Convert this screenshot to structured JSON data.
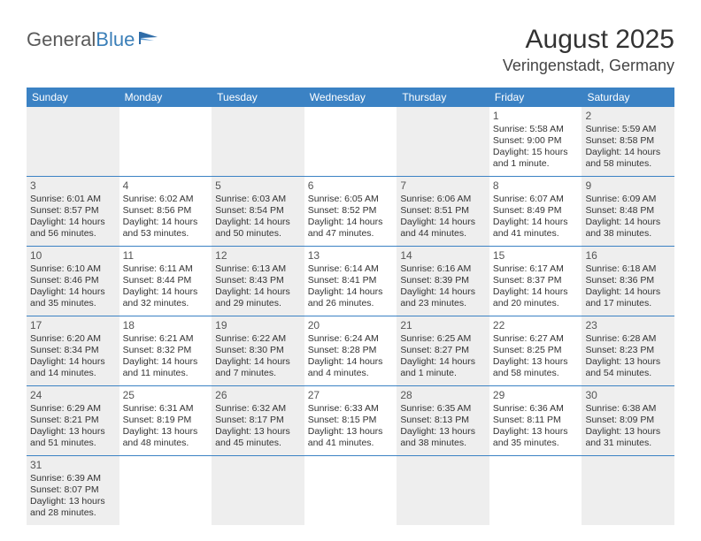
{
  "logo": {
    "text1": "General",
    "text2": "Blue"
  },
  "title": "August 2025",
  "location": "Veringenstadt, Germany",
  "colors": {
    "header_bg": "#3b82c4",
    "header_text": "#ffffff",
    "shaded_bg": "#eeeeee",
    "body_text": "#333333",
    "rule": "#3b82c4"
  },
  "day_names": [
    "Sunday",
    "Monday",
    "Tuesday",
    "Wednesday",
    "Thursday",
    "Friday",
    "Saturday"
  ],
  "weeks": [
    [
      null,
      null,
      null,
      null,
      null,
      {
        "n": "1",
        "sr": "Sunrise: 5:58 AM",
        "ss": "Sunset: 9:00 PM",
        "d1": "Daylight: 15 hours",
        "d2": "and 1 minute."
      },
      {
        "n": "2",
        "sr": "Sunrise: 5:59 AM",
        "ss": "Sunset: 8:58 PM",
        "d1": "Daylight: 14 hours",
        "d2": "and 58 minutes."
      }
    ],
    [
      {
        "n": "3",
        "sr": "Sunrise: 6:01 AM",
        "ss": "Sunset: 8:57 PM",
        "d1": "Daylight: 14 hours",
        "d2": "and 56 minutes."
      },
      {
        "n": "4",
        "sr": "Sunrise: 6:02 AM",
        "ss": "Sunset: 8:56 PM",
        "d1": "Daylight: 14 hours",
        "d2": "and 53 minutes."
      },
      {
        "n": "5",
        "sr": "Sunrise: 6:03 AM",
        "ss": "Sunset: 8:54 PM",
        "d1": "Daylight: 14 hours",
        "d2": "and 50 minutes."
      },
      {
        "n": "6",
        "sr": "Sunrise: 6:05 AM",
        "ss": "Sunset: 8:52 PM",
        "d1": "Daylight: 14 hours",
        "d2": "and 47 minutes."
      },
      {
        "n": "7",
        "sr": "Sunrise: 6:06 AM",
        "ss": "Sunset: 8:51 PM",
        "d1": "Daylight: 14 hours",
        "d2": "and 44 minutes."
      },
      {
        "n": "8",
        "sr": "Sunrise: 6:07 AM",
        "ss": "Sunset: 8:49 PM",
        "d1": "Daylight: 14 hours",
        "d2": "and 41 minutes."
      },
      {
        "n": "9",
        "sr": "Sunrise: 6:09 AM",
        "ss": "Sunset: 8:48 PM",
        "d1": "Daylight: 14 hours",
        "d2": "and 38 minutes."
      }
    ],
    [
      {
        "n": "10",
        "sr": "Sunrise: 6:10 AM",
        "ss": "Sunset: 8:46 PM",
        "d1": "Daylight: 14 hours",
        "d2": "and 35 minutes."
      },
      {
        "n": "11",
        "sr": "Sunrise: 6:11 AM",
        "ss": "Sunset: 8:44 PM",
        "d1": "Daylight: 14 hours",
        "d2": "and 32 minutes."
      },
      {
        "n": "12",
        "sr": "Sunrise: 6:13 AM",
        "ss": "Sunset: 8:43 PM",
        "d1": "Daylight: 14 hours",
        "d2": "and 29 minutes."
      },
      {
        "n": "13",
        "sr": "Sunrise: 6:14 AM",
        "ss": "Sunset: 8:41 PM",
        "d1": "Daylight: 14 hours",
        "d2": "and 26 minutes."
      },
      {
        "n": "14",
        "sr": "Sunrise: 6:16 AM",
        "ss": "Sunset: 8:39 PM",
        "d1": "Daylight: 14 hours",
        "d2": "and 23 minutes."
      },
      {
        "n": "15",
        "sr": "Sunrise: 6:17 AM",
        "ss": "Sunset: 8:37 PM",
        "d1": "Daylight: 14 hours",
        "d2": "and 20 minutes."
      },
      {
        "n": "16",
        "sr": "Sunrise: 6:18 AM",
        "ss": "Sunset: 8:36 PM",
        "d1": "Daylight: 14 hours",
        "d2": "and 17 minutes."
      }
    ],
    [
      {
        "n": "17",
        "sr": "Sunrise: 6:20 AM",
        "ss": "Sunset: 8:34 PM",
        "d1": "Daylight: 14 hours",
        "d2": "and 14 minutes."
      },
      {
        "n": "18",
        "sr": "Sunrise: 6:21 AM",
        "ss": "Sunset: 8:32 PM",
        "d1": "Daylight: 14 hours",
        "d2": "and 11 minutes."
      },
      {
        "n": "19",
        "sr": "Sunrise: 6:22 AM",
        "ss": "Sunset: 8:30 PM",
        "d1": "Daylight: 14 hours",
        "d2": "and 7 minutes."
      },
      {
        "n": "20",
        "sr": "Sunrise: 6:24 AM",
        "ss": "Sunset: 8:28 PM",
        "d1": "Daylight: 14 hours",
        "d2": "and 4 minutes."
      },
      {
        "n": "21",
        "sr": "Sunrise: 6:25 AM",
        "ss": "Sunset: 8:27 PM",
        "d1": "Daylight: 14 hours",
        "d2": "and 1 minute."
      },
      {
        "n": "22",
        "sr": "Sunrise: 6:27 AM",
        "ss": "Sunset: 8:25 PM",
        "d1": "Daylight: 13 hours",
        "d2": "and 58 minutes."
      },
      {
        "n": "23",
        "sr": "Sunrise: 6:28 AM",
        "ss": "Sunset: 8:23 PM",
        "d1": "Daylight: 13 hours",
        "d2": "and 54 minutes."
      }
    ],
    [
      {
        "n": "24",
        "sr": "Sunrise: 6:29 AM",
        "ss": "Sunset: 8:21 PM",
        "d1": "Daylight: 13 hours",
        "d2": "and 51 minutes."
      },
      {
        "n": "25",
        "sr": "Sunrise: 6:31 AM",
        "ss": "Sunset: 8:19 PM",
        "d1": "Daylight: 13 hours",
        "d2": "and 48 minutes."
      },
      {
        "n": "26",
        "sr": "Sunrise: 6:32 AM",
        "ss": "Sunset: 8:17 PM",
        "d1": "Daylight: 13 hours",
        "d2": "and 45 minutes."
      },
      {
        "n": "27",
        "sr": "Sunrise: 6:33 AM",
        "ss": "Sunset: 8:15 PM",
        "d1": "Daylight: 13 hours",
        "d2": "and 41 minutes."
      },
      {
        "n": "28",
        "sr": "Sunrise: 6:35 AM",
        "ss": "Sunset: 8:13 PM",
        "d1": "Daylight: 13 hours",
        "d2": "and 38 minutes."
      },
      {
        "n": "29",
        "sr": "Sunrise: 6:36 AM",
        "ss": "Sunset: 8:11 PM",
        "d1": "Daylight: 13 hours",
        "d2": "and 35 minutes."
      },
      {
        "n": "30",
        "sr": "Sunrise: 6:38 AM",
        "ss": "Sunset: 8:09 PM",
        "d1": "Daylight: 13 hours",
        "d2": "and 31 minutes."
      }
    ],
    [
      {
        "n": "31",
        "sr": "Sunrise: 6:39 AM",
        "ss": "Sunset: 8:07 PM",
        "d1": "Daylight: 13 hours",
        "d2": "and 28 minutes."
      },
      null,
      null,
      null,
      null,
      null,
      null
    ]
  ]
}
